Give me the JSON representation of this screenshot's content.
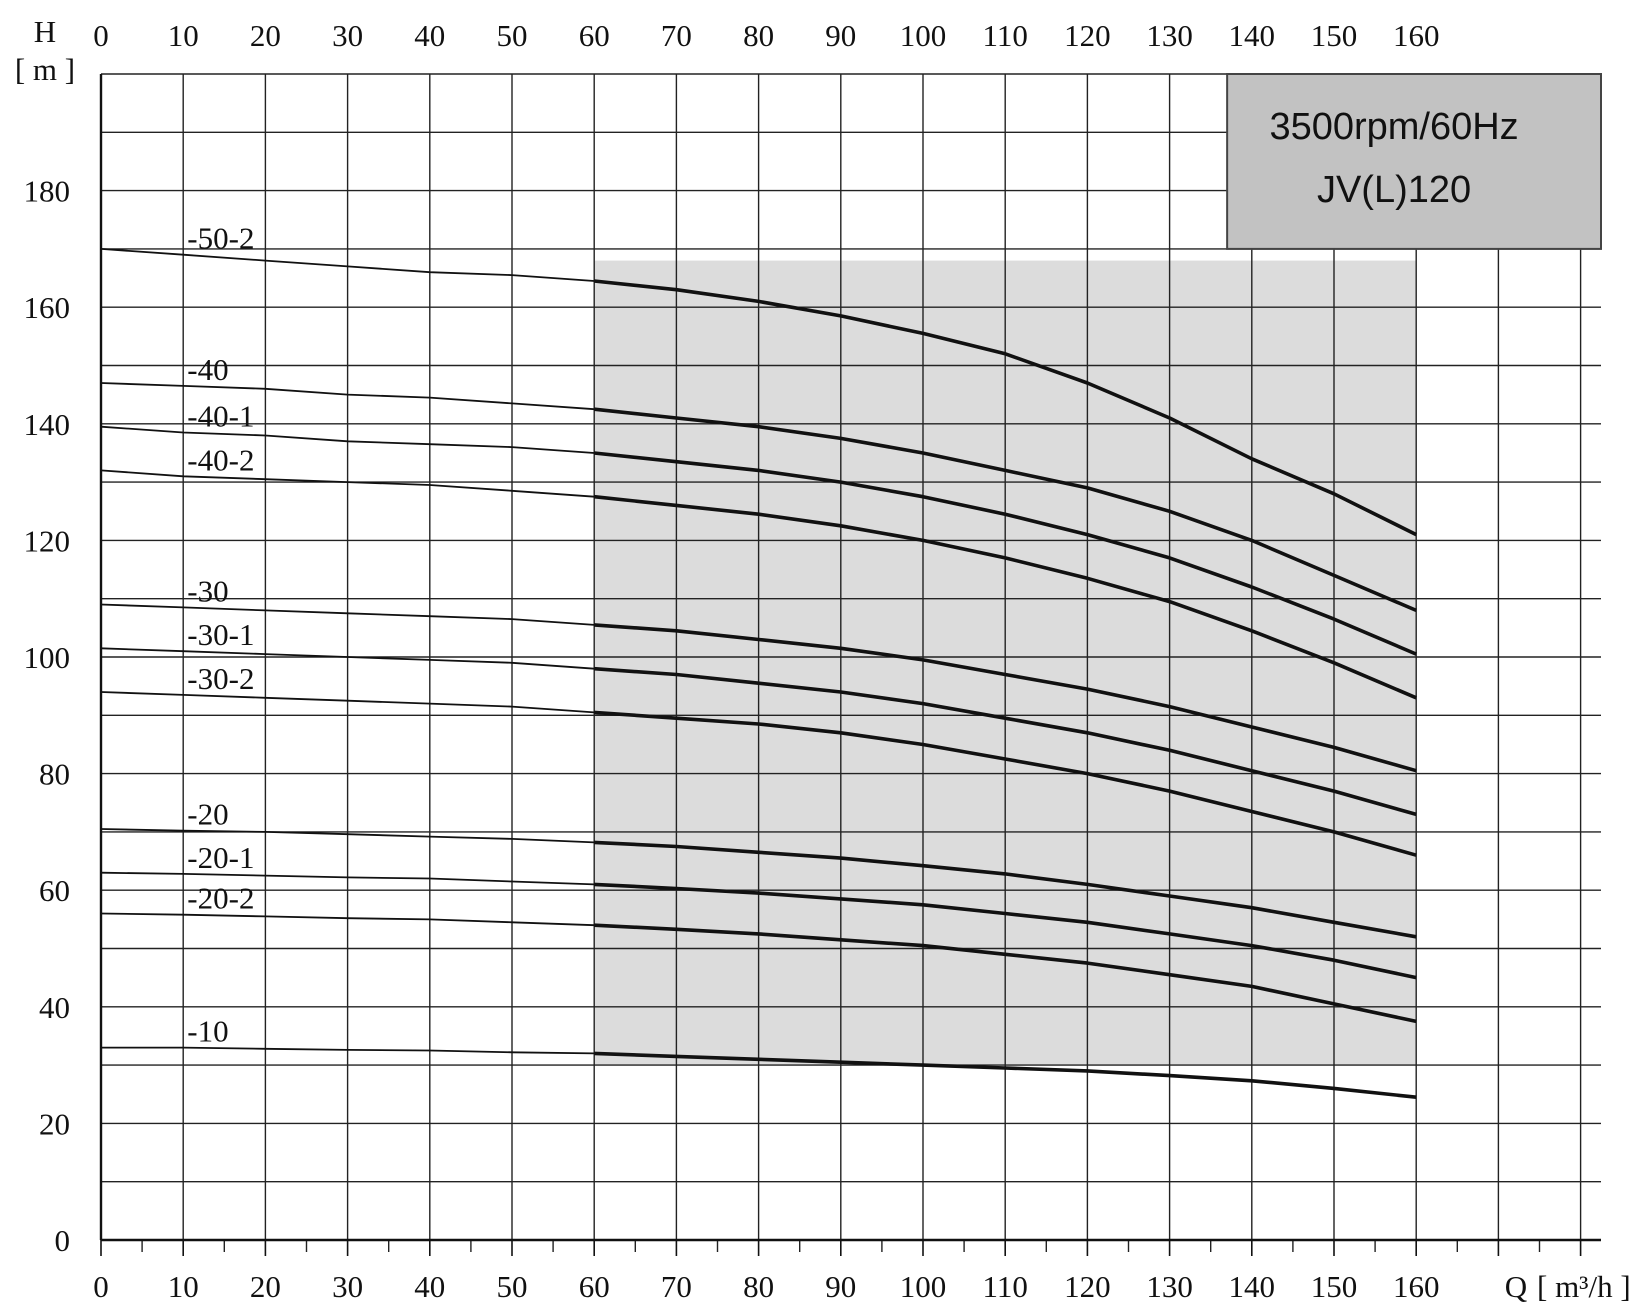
{
  "chart_data": {
    "type": "line",
    "title": "3500rpm/60Hz",
    "subtitle": "JV(L)120",
    "ylabel": "H",
    "yunit": "[ m ]",
    "xlabel": "Q",
    "xunit": "[ m³/h ]",
    "xlim": [
      0,
      183
    ],
    "ylim": [
      0,
      200
    ],
    "x_ticks": [
      0,
      10,
      20,
      30,
      40,
      50,
      60,
      70,
      80,
      90,
      100,
      110,
      120,
      130,
      140,
      150,
      160
    ],
    "y_ticks": [
      0,
      20,
      40,
      60,
      80,
      100,
      120,
      140,
      160,
      180
    ],
    "grid": true,
    "shaded_operating_range": [
      60,
      160
    ],
    "x": [
      0,
      10,
      20,
      30,
      40,
      50,
      60,
      70,
      80,
      90,
      100,
      110,
      120,
      130,
      140,
      150,
      160
    ],
    "series": [
      {
        "name": "-50-2",
        "values": [
          170,
          169,
          168,
          167,
          166,
          165.5,
          164.5,
          163,
          161,
          158.5,
          155.5,
          152,
          147,
          141,
          134,
          128,
          121
        ]
      },
      {
        "name": "-40",
        "values": [
          147,
          146.5,
          146,
          145,
          144.5,
          143.5,
          142.5,
          141,
          139.5,
          137.5,
          135,
          132,
          129,
          125,
          120,
          114,
          108
        ]
      },
      {
        "name": "-40-1",
        "values": [
          139.5,
          138.5,
          138,
          137,
          136.5,
          136,
          135,
          133.5,
          132,
          130,
          127.5,
          124.5,
          121,
          117,
          112,
          106.5,
          100.5
        ]
      },
      {
        "name": "-40-2",
        "values": [
          132,
          131,
          130.5,
          130,
          129.5,
          128.5,
          127.5,
          126,
          124.5,
          122.5,
          120,
          117,
          113.5,
          109.5,
          104.5,
          99,
          93
        ]
      },
      {
        "name": "-30",
        "values": [
          109,
          108.5,
          108,
          107.5,
          107,
          106.5,
          105.5,
          104.5,
          103,
          101.5,
          99.5,
          97,
          94.5,
          91.5,
          88,
          84.5,
          80.5
        ]
      },
      {
        "name": "-30-1",
        "values": [
          101.5,
          101,
          100.5,
          100,
          99.5,
          99,
          98,
          97,
          95.5,
          94,
          92,
          89.5,
          87,
          84,
          80.5,
          77,
          73
        ]
      },
      {
        "name": "-30-2",
        "values": [
          94,
          93.5,
          93,
          92.5,
          92,
          91.5,
          90.5,
          89.5,
          88.5,
          87,
          85,
          82.5,
          80,
          77,
          73.5,
          70,
          66
        ]
      },
      {
        "name": "-20",
        "values": [
          70.5,
          70.2,
          70,
          69.6,
          69.2,
          68.8,
          68.2,
          67.5,
          66.5,
          65.5,
          64.2,
          62.8,
          61,
          59,
          57,
          54.5,
          52
        ]
      },
      {
        "name": "-20-1",
        "values": [
          63,
          62.8,
          62.5,
          62.2,
          62,
          61.5,
          61,
          60.3,
          59.5,
          58.5,
          57.5,
          56,
          54.5,
          52.5,
          50.5,
          48,
          45
        ]
      },
      {
        "name": "-20-2",
        "values": [
          56,
          55.8,
          55.5,
          55.2,
          55,
          54.5,
          54,
          53.3,
          52.5,
          51.5,
          50.5,
          49,
          47.5,
          45.5,
          43.5,
          40.5,
          37.5
        ]
      },
      {
        "name": "-10",
        "values": [
          33,
          33,
          32.8,
          32.6,
          32.5,
          32.2,
          32,
          31.5,
          31,
          30.5,
          30,
          29.5,
          29,
          28.2,
          27.3,
          26,
          24.5
        ]
      }
    ]
  }
}
